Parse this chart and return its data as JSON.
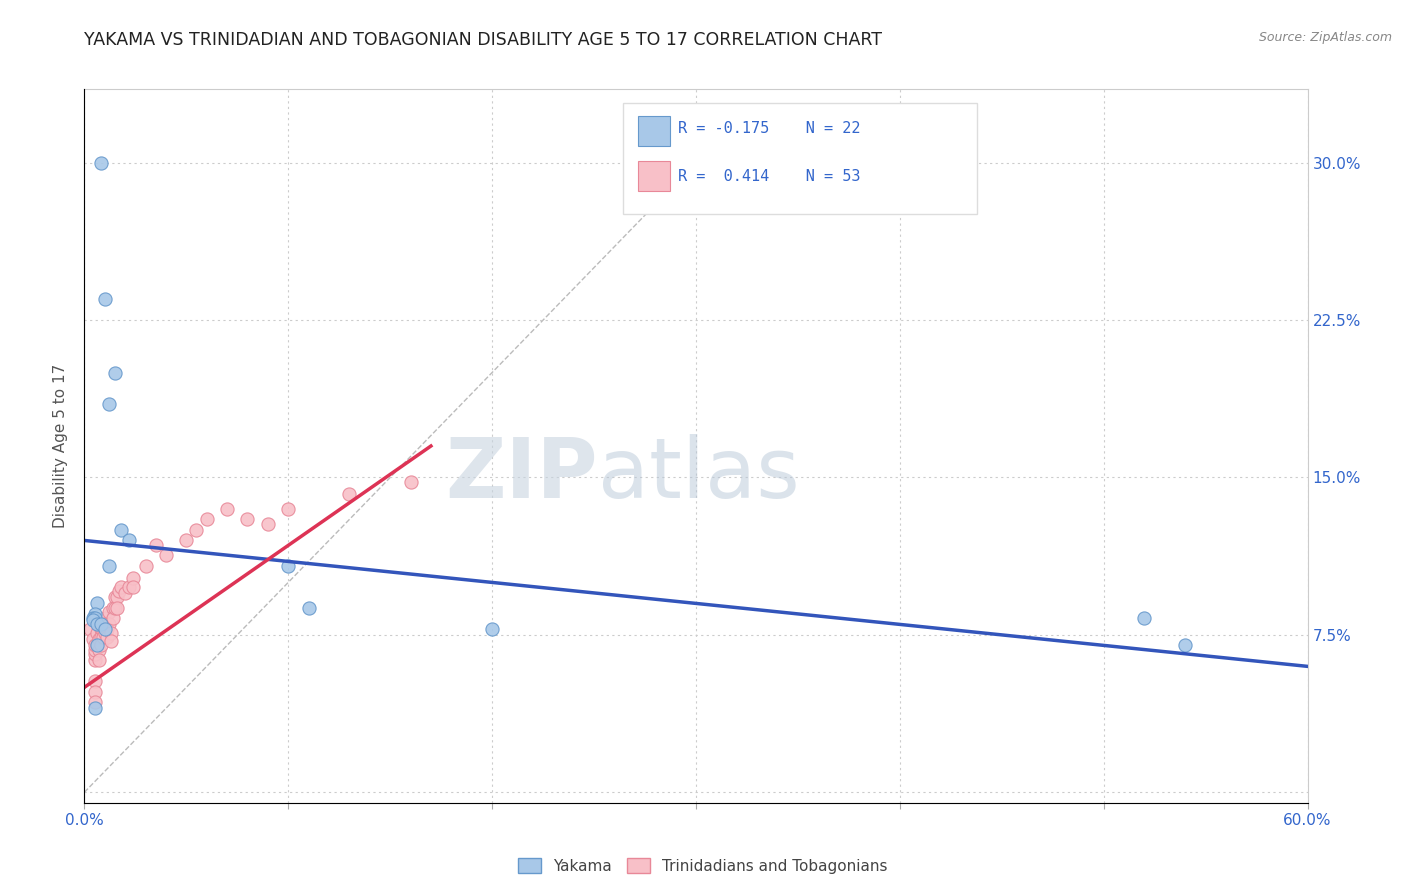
{
  "title": "YAKAMA VS TRINIDADIAN AND TOBAGONIAN DISABILITY AGE 5 TO 17 CORRELATION CHART",
  "source_text": "Source: ZipAtlas.com",
  "ylabel": "Disability Age 5 to 17",
  "x_min": 0.0,
  "x_max": 0.6,
  "y_min": -0.005,
  "y_max": 0.335,
  "x_ticks": [
    0.0,
    0.1,
    0.2,
    0.3,
    0.4,
    0.5,
    0.6
  ],
  "y_ticks": [
    0.0,
    0.075,
    0.15,
    0.225,
    0.3
  ],
  "y_tick_labels_right": [
    "",
    "7.5%",
    "15.0%",
    "22.5%",
    "30.0%"
  ],
  "grid_color": "#cccccc",
  "background_color": "#ffffff",
  "title_color": "#222222",
  "title_fontsize": 12.5,
  "yakama_color": "#a8c8e8",
  "yakama_edge": "#6699cc",
  "trinidadian_color": "#f8c0c8",
  "trinidadian_edge": "#e88898",
  "trend_blue": "#3355bb",
  "trend_pink": "#dd3355",
  "ref_line_color": "#bbbbbb",
  "watermark_zip_color": "#d0dce8",
  "watermark_atlas_color": "#c8d4e0",
  "legend_label1": "Yakama",
  "legend_label2": "Trinidadians and Tobagonians",
  "legend_r1": "R = -0.175",
  "legend_n1": "N = 22",
  "legend_r2": "R =  0.414",
  "legend_n2": "N = 53",
  "yakama_x": [
    0.008,
    0.01,
    0.015,
    0.012,
    0.018,
    0.022,
    0.012,
    0.006,
    0.005,
    0.004,
    0.005,
    0.004,
    0.006,
    0.008,
    0.01,
    0.1,
    0.11,
    0.2,
    0.52,
    0.54,
    0.006,
    0.005
  ],
  "yakama_y": [
    0.3,
    0.235,
    0.2,
    0.185,
    0.125,
    0.12,
    0.108,
    0.09,
    0.085,
    0.083,
    0.083,
    0.082,
    0.08,
    0.08,
    0.078,
    0.108,
    0.088,
    0.078,
    0.083,
    0.07,
    0.07,
    0.04
  ],
  "trinidadian_x": [
    0.003,
    0.004,
    0.005,
    0.005,
    0.005,
    0.005,
    0.005,
    0.005,
    0.005,
    0.006,
    0.006,
    0.007,
    0.007,
    0.007,
    0.008,
    0.008,
    0.008,
    0.009,
    0.009,
    0.009,
    0.01,
    0.01,
    0.01,
    0.011,
    0.011,
    0.012,
    0.012,
    0.013,
    0.013,
    0.014,
    0.014,
    0.015,
    0.015,
    0.016,
    0.016,
    0.017,
    0.018,
    0.02,
    0.022,
    0.024,
    0.024,
    0.03,
    0.035,
    0.04,
    0.05,
    0.055,
    0.06,
    0.07,
    0.08,
    0.09,
    0.1,
    0.13,
    0.16
  ],
  "trinidadian_y": [
    0.078,
    0.073,
    0.063,
    0.066,
    0.068,
    0.07,
    0.053,
    0.048,
    0.043,
    0.076,
    0.07,
    0.073,
    0.068,
    0.063,
    0.078,
    0.074,
    0.07,
    0.08,
    0.077,
    0.074,
    0.083,
    0.08,
    0.076,
    0.078,
    0.074,
    0.086,
    0.08,
    0.076,
    0.072,
    0.088,
    0.083,
    0.093,
    0.088,
    0.093,
    0.088,
    0.096,
    0.098,
    0.095,
    0.098,
    0.102,
    0.098,
    0.108,
    0.118,
    0.113,
    0.12,
    0.125,
    0.13,
    0.135,
    0.13,
    0.128,
    0.135,
    0.142,
    0.148
  ],
  "blue_trendline_x": [
    0.0,
    0.6
  ],
  "blue_trendline_y": [
    0.12,
    0.06
  ],
  "pink_trendline_x": [
    0.0,
    0.17
  ],
  "pink_trendline_y": [
    0.05,
    0.165
  ],
  "ref_line_x": [
    0.0,
    0.325
  ],
  "ref_line_y": [
    0.0,
    0.325
  ]
}
